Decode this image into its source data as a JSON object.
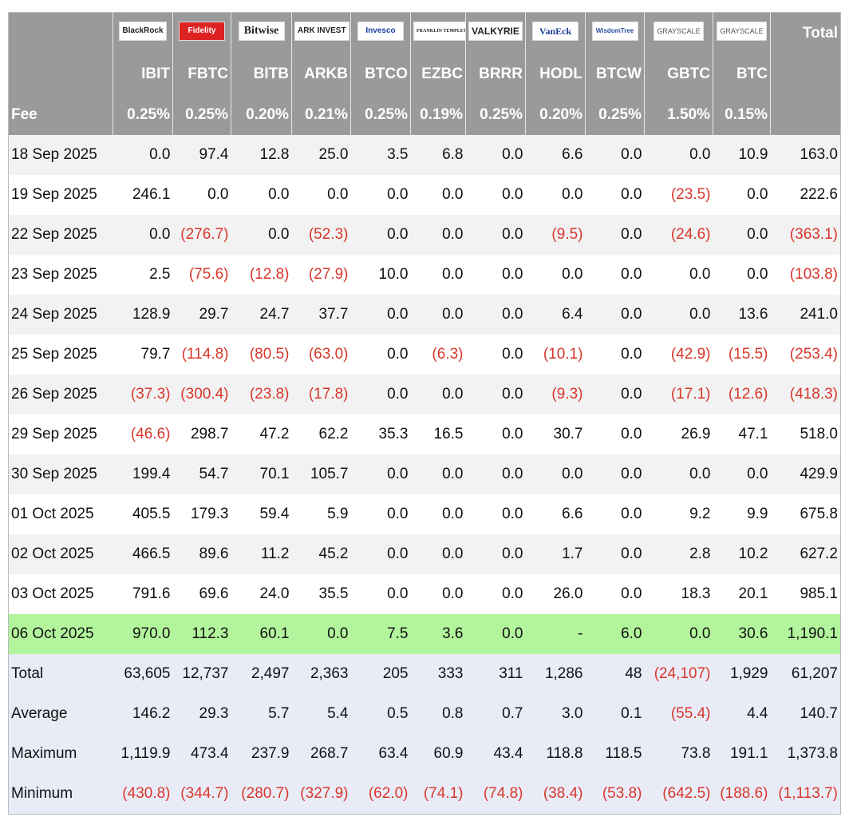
{
  "header": {
    "issuers": [
      "BlackRock",
      "Fidelity",
      "Bitwise",
      "ARK INVEST",
      "Invesco",
      "FRANKLIN TEMPLETON",
      "VALKYRIE",
      "VanEck",
      "WisdomTree",
      "GRAYSCALE",
      "GRAYSCALE"
    ],
    "total_label": "Total",
    "tickers": [
      "IBIT",
      "FBTC",
      "BITB",
      "ARKB",
      "BTCO",
      "EZBC",
      "BRRR",
      "HODL",
      "BTCW",
      "GBTC",
      "BTC"
    ],
    "fee_label": "Fee",
    "fees": [
      "0.25%",
      "0.25%",
      "0.20%",
      "0.21%",
      "0.25%",
      "0.19%",
      "0.25%",
      "0.20%",
      "0.25%",
      "1.50%",
      "0.15%"
    ]
  },
  "rows": [
    {
      "date": "18 Sep 2025",
      "values": [
        "0.0",
        "97.4",
        "12.8",
        "25.0",
        "3.5",
        "6.8",
        "0.0",
        "6.6",
        "0.0",
        "0.0",
        "10.9",
        "163.0"
      ]
    },
    {
      "date": "19 Sep 2025",
      "values": [
        "246.1",
        "0.0",
        "0.0",
        "0.0",
        "0.0",
        "0.0",
        "0.0",
        "0.0",
        "0.0",
        "(23.5)",
        "0.0",
        "222.6"
      ]
    },
    {
      "date": "22 Sep 2025",
      "values": [
        "0.0",
        "(276.7)",
        "0.0",
        "(52.3)",
        "0.0",
        "0.0",
        "0.0",
        "(9.5)",
        "0.0",
        "(24.6)",
        "0.0",
        "(363.1)"
      ]
    },
    {
      "date": "23 Sep 2025",
      "values": [
        "2.5",
        "(75.6)",
        "(12.8)",
        "(27.9)",
        "10.0",
        "0.0",
        "0.0",
        "0.0",
        "0.0",
        "0.0",
        "0.0",
        "(103.8)"
      ]
    },
    {
      "date": "24 Sep 2025",
      "values": [
        "128.9",
        "29.7",
        "24.7",
        "37.7",
        "0.0",
        "0.0",
        "0.0",
        "6.4",
        "0.0",
        "0.0",
        "13.6",
        "241.0"
      ]
    },
    {
      "date": "25 Sep 2025",
      "values": [
        "79.7",
        "(114.8)",
        "(80.5)",
        "(63.0)",
        "0.0",
        "(6.3)",
        "0.0",
        "(10.1)",
        "0.0",
        "(42.9)",
        "(15.5)",
        "(253.4)"
      ]
    },
    {
      "date": "26 Sep 2025",
      "values": [
        "(37.3)",
        "(300.4)",
        "(23.8)",
        "(17.8)",
        "0.0",
        "0.0",
        "0.0",
        "(9.3)",
        "0.0",
        "(17.1)",
        "(12.6)",
        "(418.3)"
      ]
    },
    {
      "date": "29 Sep 2025",
      "values": [
        "(46.6)",
        "298.7",
        "47.2",
        "62.2",
        "35.3",
        "16.5",
        "0.0",
        "30.7",
        "0.0",
        "26.9",
        "47.1",
        "518.0"
      ]
    },
    {
      "date": "30 Sep 2025",
      "values": [
        "199.4",
        "54.7",
        "70.1",
        "105.7",
        "0.0",
        "0.0",
        "0.0",
        "0.0",
        "0.0",
        "0.0",
        "0.0",
        "429.9"
      ]
    },
    {
      "date": "01 Oct 2025",
      "values": [
        "405.5",
        "179.3",
        "59.4",
        "5.9",
        "0.0",
        "0.0",
        "0.0",
        "6.6",
        "0.0",
        "9.2",
        "9.9",
        "675.8"
      ]
    },
    {
      "date": "02 Oct 2025",
      "values": [
        "466.5",
        "89.6",
        "11.2",
        "45.2",
        "0.0",
        "0.0",
        "0.0",
        "1.7",
        "0.0",
        "2.8",
        "10.2",
        "627.2"
      ]
    },
    {
      "date": "03 Oct 2025",
      "values": [
        "791.6",
        "69.6",
        "24.0",
        "35.5",
        "0.0",
        "0.0",
        "0.0",
        "26.0",
        "0.0",
        "18.3",
        "20.1",
        "985.1"
      ]
    },
    {
      "date": "06 Oct 2025",
      "highlight": true,
      "values": [
        "970.0",
        "112.3",
        "60.1",
        "0.0",
        "7.5",
        "3.6",
        "0.0",
        "-",
        "6.0",
        "0.0",
        "30.6",
        "1,190.1"
      ]
    }
  ],
  "summary": [
    {
      "label": "Total",
      "values": [
        "63,605",
        "12,737",
        "2,497",
        "2,363",
        "205",
        "333",
        "311",
        "1,286",
        "48",
        "(24,107)",
        "1,929",
        "61,207"
      ]
    },
    {
      "label": "Average",
      "values": [
        "146.2",
        "29.3",
        "5.7",
        "5.4",
        "0.5",
        "0.8",
        "0.7",
        "3.0",
        "0.1",
        "(55.4)",
        "4.4",
        "140.7"
      ]
    },
    {
      "label": "Maximum",
      "values": [
        "1,119.9",
        "473.4",
        "237.9",
        "268.7",
        "63.4",
        "60.9",
        "43.4",
        "118.8",
        "118.5",
        "73.8",
        "191.1",
        "1,373.8"
      ]
    },
    {
      "label": "Minimum",
      "values": [
        "(430.8)",
        "(344.7)",
        "(280.7)",
        "(327.9)",
        "(62.0)",
        "(74.1)",
        "(74.8)",
        "(38.4)",
        "(53.8)",
        "(642.5)",
        "(188.6)",
        "(1,113.7)"
      ]
    }
  ]
}
